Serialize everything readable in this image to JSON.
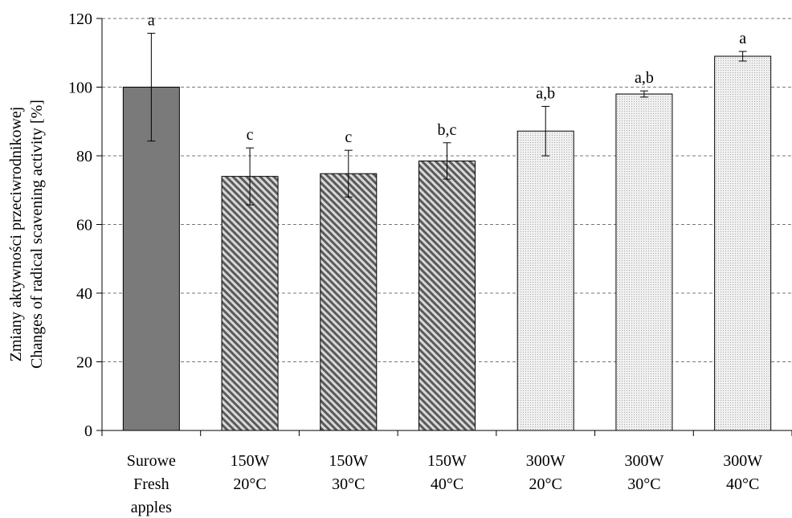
{
  "chart_data": {
    "type": "bar",
    "title": "",
    "xlabel": "",
    "ylabel": [
      "Zmiany aktywności przeciwrodnikowej",
      "Changes of radical scavening activity [%]"
    ],
    "ylim": [
      0,
      120
    ],
    "yticks": [
      0,
      20,
      40,
      60,
      80,
      100,
      120
    ],
    "grid": "horizontal-dashed",
    "legend": "none",
    "categories": [
      [
        "Surowe",
        "Fresh",
        "apples"
      ],
      [
        "150W",
        "20°C"
      ],
      [
        "150W",
        "30°C"
      ],
      [
        "150W",
        "40°C"
      ],
      [
        "300W",
        "20°C"
      ],
      [
        "300W",
        "30°C"
      ],
      [
        "300W",
        "40°C"
      ]
    ],
    "values": [
      100,
      74,
      74.8,
      78.5,
      87.2,
      98,
      109
    ],
    "errors": [
      15.7,
      8.3,
      6.8,
      5.3,
      7.2,
      0.9,
      1.4
    ],
    "significance_labels": [
      "a",
      "c",
      "c",
      "b,c",
      "a,b",
      "a,b",
      "a"
    ],
    "bar_styles": [
      "solid",
      "hatched",
      "hatched",
      "hatched",
      "dotted",
      "dotted",
      "dotted"
    ],
    "colors": {
      "solid": "#7a7a7a",
      "hatched_fg": "#5a5a5a",
      "hatched_bg": "#d8d8d8",
      "dotted_fg": "#a8a8a8",
      "dotted_bg": "#f0f0f0",
      "grid": "#777777",
      "axis": "#000000"
    }
  }
}
